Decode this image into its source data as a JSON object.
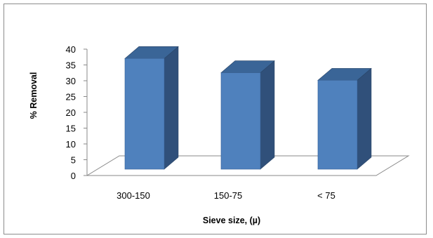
{
  "chart_data": {
    "type": "bar",
    "categories": [
      "300-150",
      "150-75",
      "< 75"
    ],
    "values": [
      39.7,
      35.2,
      32.8
    ],
    "title": "",
    "xlabel": "Sieve size, (µ)",
    "ylabel": "% Removal",
    "ylim": [
      0,
      40
    ],
    "yticks": [
      0,
      5,
      10,
      15,
      20,
      25,
      30,
      35,
      40
    ],
    "bar_color": "#4f81bd",
    "bar_side_color": "#30507a",
    "bar_top_color": "#3a6597",
    "grid": false,
    "legend": "none",
    "style": "3d-column"
  }
}
